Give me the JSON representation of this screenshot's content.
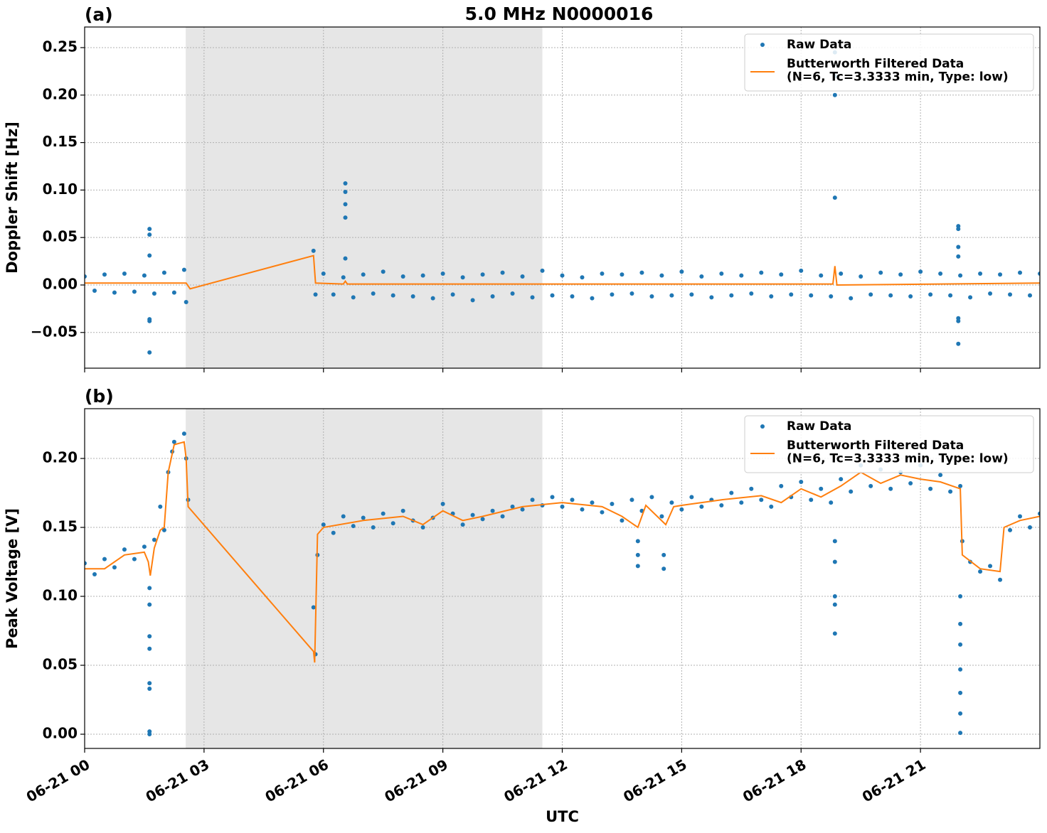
{
  "chart_data": [
    {
      "type": "scatter_line",
      "title": "5.0 MHz N0000016",
      "panel_label": "(a)",
      "ylabel": "Doppler Shift [Hz]",
      "xlim": [
        0,
        24
      ],
      "ylim": [
        -0.0876,
        0.2717
      ],
      "xticks": [
        0,
        3,
        6,
        9,
        12,
        15,
        18,
        21
      ],
      "yticks": [
        {
          "value": -0.05,
          "label": "−0.05"
        },
        {
          "value": 0,
          "label": "0.00"
        },
        {
          "value": 0.05,
          "label": "0.05"
        },
        {
          "value": 0.1,
          "label": "0.10"
        },
        {
          "value": 0.15,
          "label": "0.15"
        },
        {
          "value": 0.2,
          "label": "0.20"
        },
        {
          "value": 0.25,
          "label": "0.25"
        }
      ],
      "shade": [
        2.54,
        11.5
      ],
      "shade_color": "#e6e6e6",
      "grid": true,
      "legend": "upper right",
      "series": [
        {
          "name": "Raw Data",
          "style": "markers",
          "color": "#1f77b4",
          "x": [
            0,
            0.25,
            0.5,
            0.75,
            1,
            1.25,
            1.5,
            1.75,
            2,
            2.25,
            2.5,
            2.55,
            1.63,
            1.63,
            1.63,
            1.63,
            1.63,
            1.63,
            5.75,
            5.8,
            6,
            6.25,
            6.5,
            6.75,
            7,
            7.25,
            7.5,
            7.75,
            8,
            8.25,
            8.5,
            8.75,
            9,
            9.25,
            9.5,
            9.75,
            10,
            10.25,
            10.5,
            10.75,
            11,
            11.25,
            11.5,
            11.75,
            12,
            12.25,
            12.5,
            12.75,
            13,
            13.25,
            13.5,
            13.75,
            14,
            14.25,
            14.5,
            14.75,
            15,
            15.25,
            15.5,
            15.75,
            16,
            16.25,
            16.5,
            16.75,
            17,
            17.25,
            17.5,
            17.75,
            18,
            18.25,
            18.5,
            18.75,
            19,
            19.25,
            19.5,
            19.75,
            20,
            20.25,
            20.5,
            20.75,
            21,
            21.25,
            21.5,
            21.75,
            22,
            22.25,
            22.5,
            22.75,
            23,
            23.25,
            23.5,
            23.75,
            24,
            6.55,
            6.55,
            6.55,
            6.55,
            6.55,
            18.85,
            18.85,
            18.85,
            18.85,
            21.95,
            21.95,
            21.95,
            21.95,
            21.95,
            21.95,
            21.95
          ],
          "values": [
            0.009,
            -0.006,
            0.011,
            -0.008,
            0.012,
            -0.007,
            0.01,
            -0.009,
            0.013,
            -0.008,
            0.016,
            -0.018,
            0.059,
            0.053,
            0.031,
            -0.036,
            -0.038,
            -0.071,
            0.036,
            -0.01,
            0.012,
            -0.01,
            0.008,
            -0.013,
            0.011,
            -0.009,
            0.014,
            -0.011,
            0.009,
            -0.012,
            0.01,
            -0.014,
            0.012,
            -0.01,
            0.008,
            -0.016,
            0.011,
            -0.012,
            0.013,
            -0.009,
            0.009,
            -0.013,
            0.015,
            -0.011,
            0.01,
            -0.012,
            0.008,
            -0.014,
            0.012,
            -0.01,
            0.011,
            -0.009,
            0.013,
            -0.012,
            0.01,
            -0.011,
            0.014,
            -0.01,
            0.009,
            -0.013,
            0.012,
            -0.011,
            0.01,
            -0.009,
            0.013,
            -0.012,
            0.011,
            -0.01,
            0.015,
            -0.011,
            0.01,
            -0.012,
            0.012,
            -0.014,
            0.009,
            -0.01,
            0.013,
            -0.011,
            0.011,
            -0.012,
            0.014,
            -0.01,
            0.012,
            -0.011,
            0.01,
            -0.013,
            0.012,
            -0.009,
            0.011,
            -0.01,
            0.013,
            -0.011,
            0.012,
            0.107,
            0.098,
            0.085,
            0.071,
            0.028,
            0.245,
            0.22,
            0.2,
            0.092,
            0.062,
            0.059,
            0.04,
            0.03,
            -0.035,
            -0.038,
            -0.062
          ]
        },
        {
          "name": "Butterworth Filtered Data\n(N=6, Tc=3.3333 min, Type: low)",
          "style": "line",
          "color": "#ff7f0e",
          "x": [
            0,
            2.55,
            2.65,
            5.75,
            5.8,
            6.5,
            6.55,
            6.6,
            18.8,
            18.85,
            18.9,
            24
          ],
          "values": [
            0.002,
            0.002,
            -0.004,
            0.031,
            0.002,
            0.001,
            0.004,
            0.001,
            0.001,
            0.02,
            0.0,
            0.002
          ]
        }
      ]
    },
    {
      "type": "scatter_line",
      "panel_label": "(b)",
      "ylabel": "Peak Voltage [V]",
      "xlabel": "UTC",
      "xlim": [
        0,
        24
      ],
      "ylim": [
        -0.0103,
        0.2361
      ],
      "xticks": [
        {
          "value": 0,
          "label": "06-21 00"
        },
        {
          "value": 3,
          "label": "06-21 03"
        },
        {
          "value": 6,
          "label": "06-21 06"
        },
        {
          "value": 9,
          "label": "06-21 09"
        },
        {
          "value": 12,
          "label": "06-21 12"
        },
        {
          "value": 15,
          "label": "06-21 15"
        },
        {
          "value": 18,
          "label": "06-21 18"
        },
        {
          "value": 21,
          "label": "06-21 21"
        }
      ],
      "yticks": [
        {
          "value": 0,
          "label": "0.00"
        },
        {
          "value": 0.05,
          "label": "0.05"
        },
        {
          "value": 0.1,
          "label": "0.10"
        },
        {
          "value": 0.15,
          "label": "0.15"
        },
        {
          "value": 0.2,
          "label": "0.20"
        }
      ],
      "shade": [
        2.54,
        11.5
      ],
      "shade_color": "#e6e6e6",
      "grid": true,
      "legend": "upper right",
      "series": [
        {
          "name": "Raw Data",
          "style": "markers",
          "color": "#1f77b4",
          "x": [
            0,
            0.25,
            0.5,
            0.75,
            1,
            1.25,
            1.5,
            1.75,
            2,
            2.25,
            2.5,
            2.55,
            2.6,
            1.9,
            2.1,
            2.2,
            1.63,
            1.63,
            1.63,
            1.63,
            1.63,
            1.63,
            1.63,
            1.63,
            5.75,
            5.8,
            5.85,
            6,
            6.25,
            6.5,
            6.75,
            7,
            7.25,
            7.5,
            7.75,
            8,
            8.25,
            8.5,
            8.75,
            9,
            9.25,
            9.5,
            9.75,
            10,
            10.25,
            10.5,
            10.75,
            11,
            11.25,
            11.5,
            11.75,
            12,
            12.25,
            12.5,
            12.75,
            13,
            13.25,
            13.5,
            13.75,
            14,
            14.25,
            14.5,
            14.75,
            15,
            15.25,
            15.5,
            15.75,
            16,
            16.25,
            16.5,
            16.75,
            17,
            17.25,
            17.5,
            17.75,
            18,
            18.25,
            18.5,
            18.75,
            19,
            19.25,
            19.5,
            19.75,
            20,
            20.25,
            20.5,
            20.75,
            21,
            21.25,
            21.5,
            21.75,
            22,
            22.25,
            22.5,
            22.75,
            23,
            23.25,
            23.5,
            23.75,
            24,
            13.9,
            13.9,
            13.9,
            14.55,
            14.55,
            18.85,
            18.85,
            18.85,
            18.85,
            18.85,
            22,
            22,
            22,
            22,
            22,
            22,
            22,
            22.05
          ],
          "values": [
            0.124,
            0.116,
            0.127,
            0.121,
            0.134,
            0.127,
            0.136,
            0.141,
            0.148,
            0.212,
            0.218,
            0.2,
            0.17,
            0.165,
            0.19,
            0.205,
            0.106,
            0.094,
            0.071,
            0.062,
            0.037,
            0.033,
            0.002,
            0.0,
            0.092,
            0.058,
            0.13,
            0.152,
            0.146,
            0.158,
            0.151,
            0.157,
            0.15,
            0.16,
            0.153,
            0.162,
            0.155,
            0.15,
            0.157,
            0.167,
            0.16,
            0.152,
            0.159,
            0.156,
            0.162,
            0.158,
            0.165,
            0.163,
            0.17,
            0.166,
            0.172,
            0.165,
            0.17,
            0.163,
            0.168,
            0.161,
            0.167,
            0.155,
            0.17,
            0.162,
            0.172,
            0.158,
            0.168,
            0.163,
            0.172,
            0.165,
            0.17,
            0.166,
            0.175,
            0.168,
            0.178,
            0.17,
            0.165,
            0.18,
            0.172,
            0.183,
            0.17,
            0.178,
            0.168,
            0.185,
            0.176,
            0.195,
            0.18,
            0.192,
            0.178,
            0.19,
            0.182,
            0.195,
            0.178,
            0.188,
            0.176,
            0.18,
            0.125,
            0.118,
            0.122,
            0.112,
            0.148,
            0.158,
            0.15,
            0.16,
            0.122,
            0.13,
            0.14,
            0.12,
            0.13,
            0.14,
            0.125,
            0.1,
            0.094,
            0.073,
            0.1,
            0.08,
            0.065,
            0.047,
            0.03,
            0.015,
            0.001,
            0.14
          ]
        },
        {
          "name": "Butterworth Filtered Data\n(N=6, Tc=3.3333 min, Type: low)",
          "style": "line",
          "color": "#ff7f0e",
          "x": [
            0,
            0.5,
            1,
            1.5,
            1.6,
            1.65,
            1.75,
            1.9,
            2,
            2.1,
            2.25,
            2.5,
            2.55,
            2.6,
            5.75,
            5.78,
            5.85,
            6,
            7,
            8,
            8.5,
            9,
            9.5,
            10,
            11,
            12,
            13,
            13.5,
            13.9,
            14.1,
            14.6,
            14.8,
            15,
            16,
            17,
            17.5,
            18,
            18.5,
            19,
            19.5,
            20,
            20.5,
            21,
            21.5,
            22,
            22.05,
            22.5,
            23,
            23.1,
            23.5,
            24
          ],
          "values": [
            0.12,
            0.12,
            0.13,
            0.132,
            0.125,
            0.115,
            0.135,
            0.148,
            0.15,
            0.19,
            0.21,
            0.212,
            0.2,
            0.165,
            0.06,
            0.052,
            0.145,
            0.15,
            0.155,
            0.158,
            0.152,
            0.162,
            0.155,
            0.158,
            0.165,
            0.168,
            0.165,
            0.158,
            0.15,
            0.166,
            0.152,
            0.165,
            0.166,
            0.17,
            0.173,
            0.168,
            0.178,
            0.172,
            0.18,
            0.19,
            0.182,
            0.188,
            0.185,
            0.183,
            0.178,
            0.13,
            0.12,
            0.118,
            0.15,
            0.155,
            0.158
          ]
        }
      ]
    }
  ]
}
